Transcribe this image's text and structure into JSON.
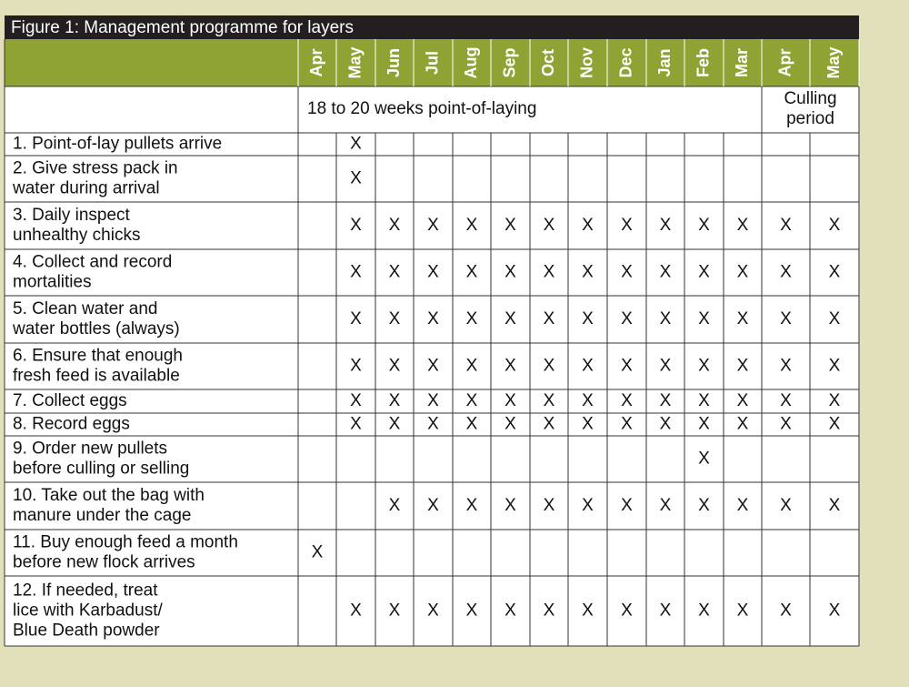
{
  "header": {
    "title": "Figure 1: Management programme for layers"
  },
  "table": {
    "months": [
      "Apr",
      "May",
      "Jun",
      "Jul",
      "Aug",
      "Sep",
      "Oct",
      "Nov",
      "Dec",
      "Jan",
      "Feb",
      "Mar",
      "Apr",
      "May"
    ],
    "periods": [
      {
        "lines": [
          "18 to 20 weeks point-of-laying"
        ]
      },
      {
        "lines": [
          "Culling",
          "period"
        ]
      }
    ],
    "rows": [
      {
        "lines": [
          "1. Point-of-lay pullets arrive"
        ],
        "marks": [
          null,
          "X",
          null,
          null,
          null,
          null,
          null,
          null,
          null,
          null,
          null,
          null,
          null,
          null
        ]
      },
      {
        "lines": [
          "2. Give stress pack in",
          "water during arrival"
        ],
        "marks": [
          null,
          "X",
          null,
          null,
          null,
          null,
          null,
          null,
          null,
          null,
          null,
          null,
          null,
          null
        ]
      },
      {
        "lines": [
          "3. Daily inspect",
          "unhealthy chicks"
        ],
        "marks": [
          null,
          "X",
          "X",
          "X",
          "X",
          "X",
          "X",
          "X",
          "X",
          "X",
          "X",
          "X",
          "X",
          "X"
        ]
      },
      {
        "lines": [
          "4. Collect and record",
          "mortalities"
        ],
        "marks": [
          null,
          "X",
          "X",
          "X",
          "X",
          "X",
          "X",
          "X",
          "X",
          "X",
          "X",
          "X",
          "X",
          "X"
        ]
      },
      {
        "lines": [
          "5. Clean water and",
          "water bottles (always)"
        ],
        "marks": [
          null,
          "X",
          "X",
          "X",
          "X",
          "X",
          "X",
          "X",
          "X",
          "X",
          "X",
          "X",
          "X",
          "X"
        ]
      },
      {
        "lines": [
          "6. Ensure that enough",
          "fresh feed is available"
        ],
        "marks": [
          null,
          "X",
          "X",
          "X",
          "X",
          "X",
          "X",
          "X",
          "X",
          "X",
          "X",
          "X",
          "X",
          "X"
        ]
      },
      {
        "lines": [
          "7. Collect eggs"
        ],
        "marks": [
          null,
          "X",
          "X",
          "X",
          "X",
          "X",
          "X",
          "X",
          "X",
          "X",
          "X",
          "X",
          "X",
          "X"
        ]
      },
      {
        "lines": [
          "8. Record eggs"
        ],
        "marks": [
          null,
          "X",
          "X",
          "X",
          "X",
          "X",
          "X",
          "X",
          "X",
          "X",
          "X",
          "X",
          "X",
          "X"
        ]
      },
      {
        "lines": [
          "9. Order new pullets",
          "before culling or selling"
        ],
        "marks": [
          null,
          null,
          null,
          null,
          null,
          null,
          null,
          null,
          null,
          null,
          "X",
          null,
          null,
          null
        ]
      },
      {
        "lines": [
          "10. Take out the bag with",
          "manure under the cage"
        ],
        "marks": [
          null,
          null,
          "X",
          "X",
          "X",
          "X",
          "X",
          "X",
          "X",
          "X",
          "X",
          "X",
          "X",
          "X"
        ]
      },
      {
        "lines": [
          "11. Buy enough feed a month",
          "before new flock arrives"
        ],
        "marks": [
          "X",
          null,
          null,
          null,
          null,
          null,
          null,
          null,
          null,
          null,
          null,
          null,
          null,
          null
        ]
      },
      {
        "lines": [
          "12. If needed, treat",
          "lice with Karbadust/",
          "Blue Death powder"
        ],
        "marks": [
          null,
          "X",
          "X",
          "X",
          "X",
          "X",
          "X",
          "X",
          "X",
          "X",
          "X",
          "X",
          "X",
          "X"
        ]
      }
    ]
  }
}
